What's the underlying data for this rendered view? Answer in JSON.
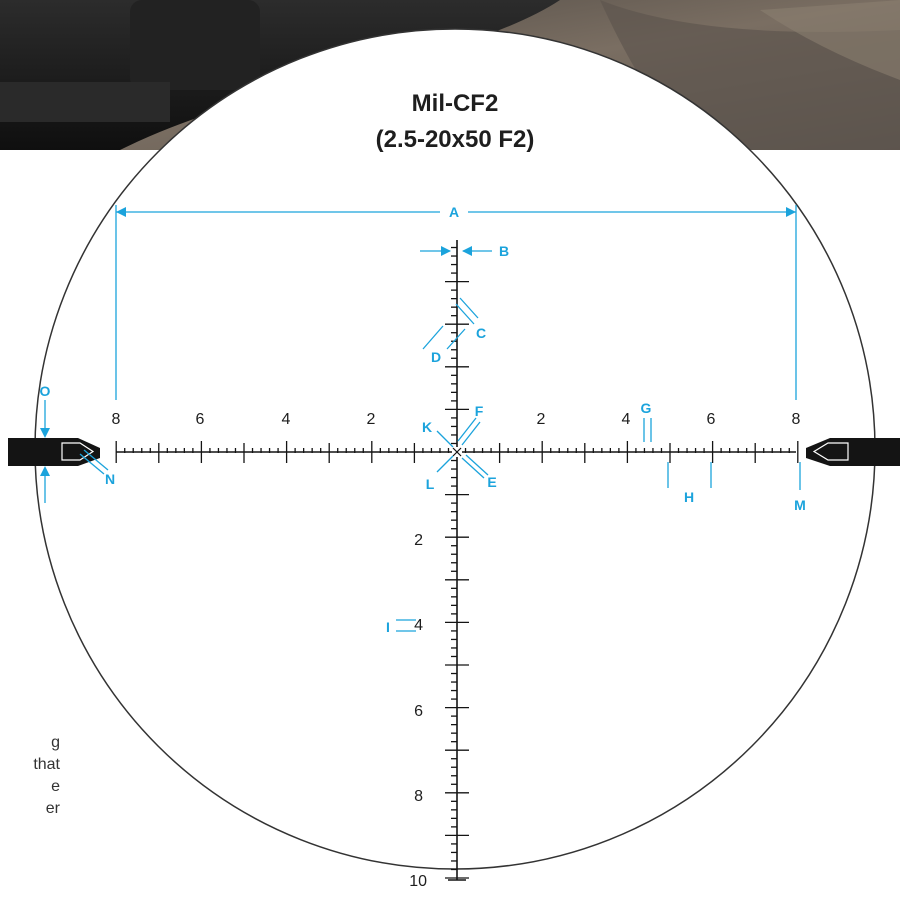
{
  "title": {
    "line1": "Mil-CF2",
    "line2": "(2.5-20x50 F2)"
  },
  "side_text_lines": [
    "g",
    "that",
    "e",
    "er"
  ],
  "horizontal_scale": {
    "left_labels": [
      "8",
      "6",
      "4",
      "2"
    ],
    "right_labels": [
      "2",
      "4",
      "6",
      "8"
    ]
  },
  "vertical_scale": {
    "labels": [
      "2",
      "4",
      "6",
      "8",
      "10"
    ]
  },
  "callouts": [
    "A",
    "B",
    "C",
    "D",
    "E",
    "F",
    "G",
    "H",
    "I",
    "K",
    "L",
    "M",
    "N",
    "O"
  ],
  "colors": {
    "callout": "#1ba3dc",
    "reticle": "#141414",
    "ring": "#333333",
    "photo_dark": "#1c1c1c",
    "photo_rock": "#6b6259"
  },
  "icons": [
    "rifle-scope-photo-top",
    "rifle-scope-photo-bottom"
  ]
}
